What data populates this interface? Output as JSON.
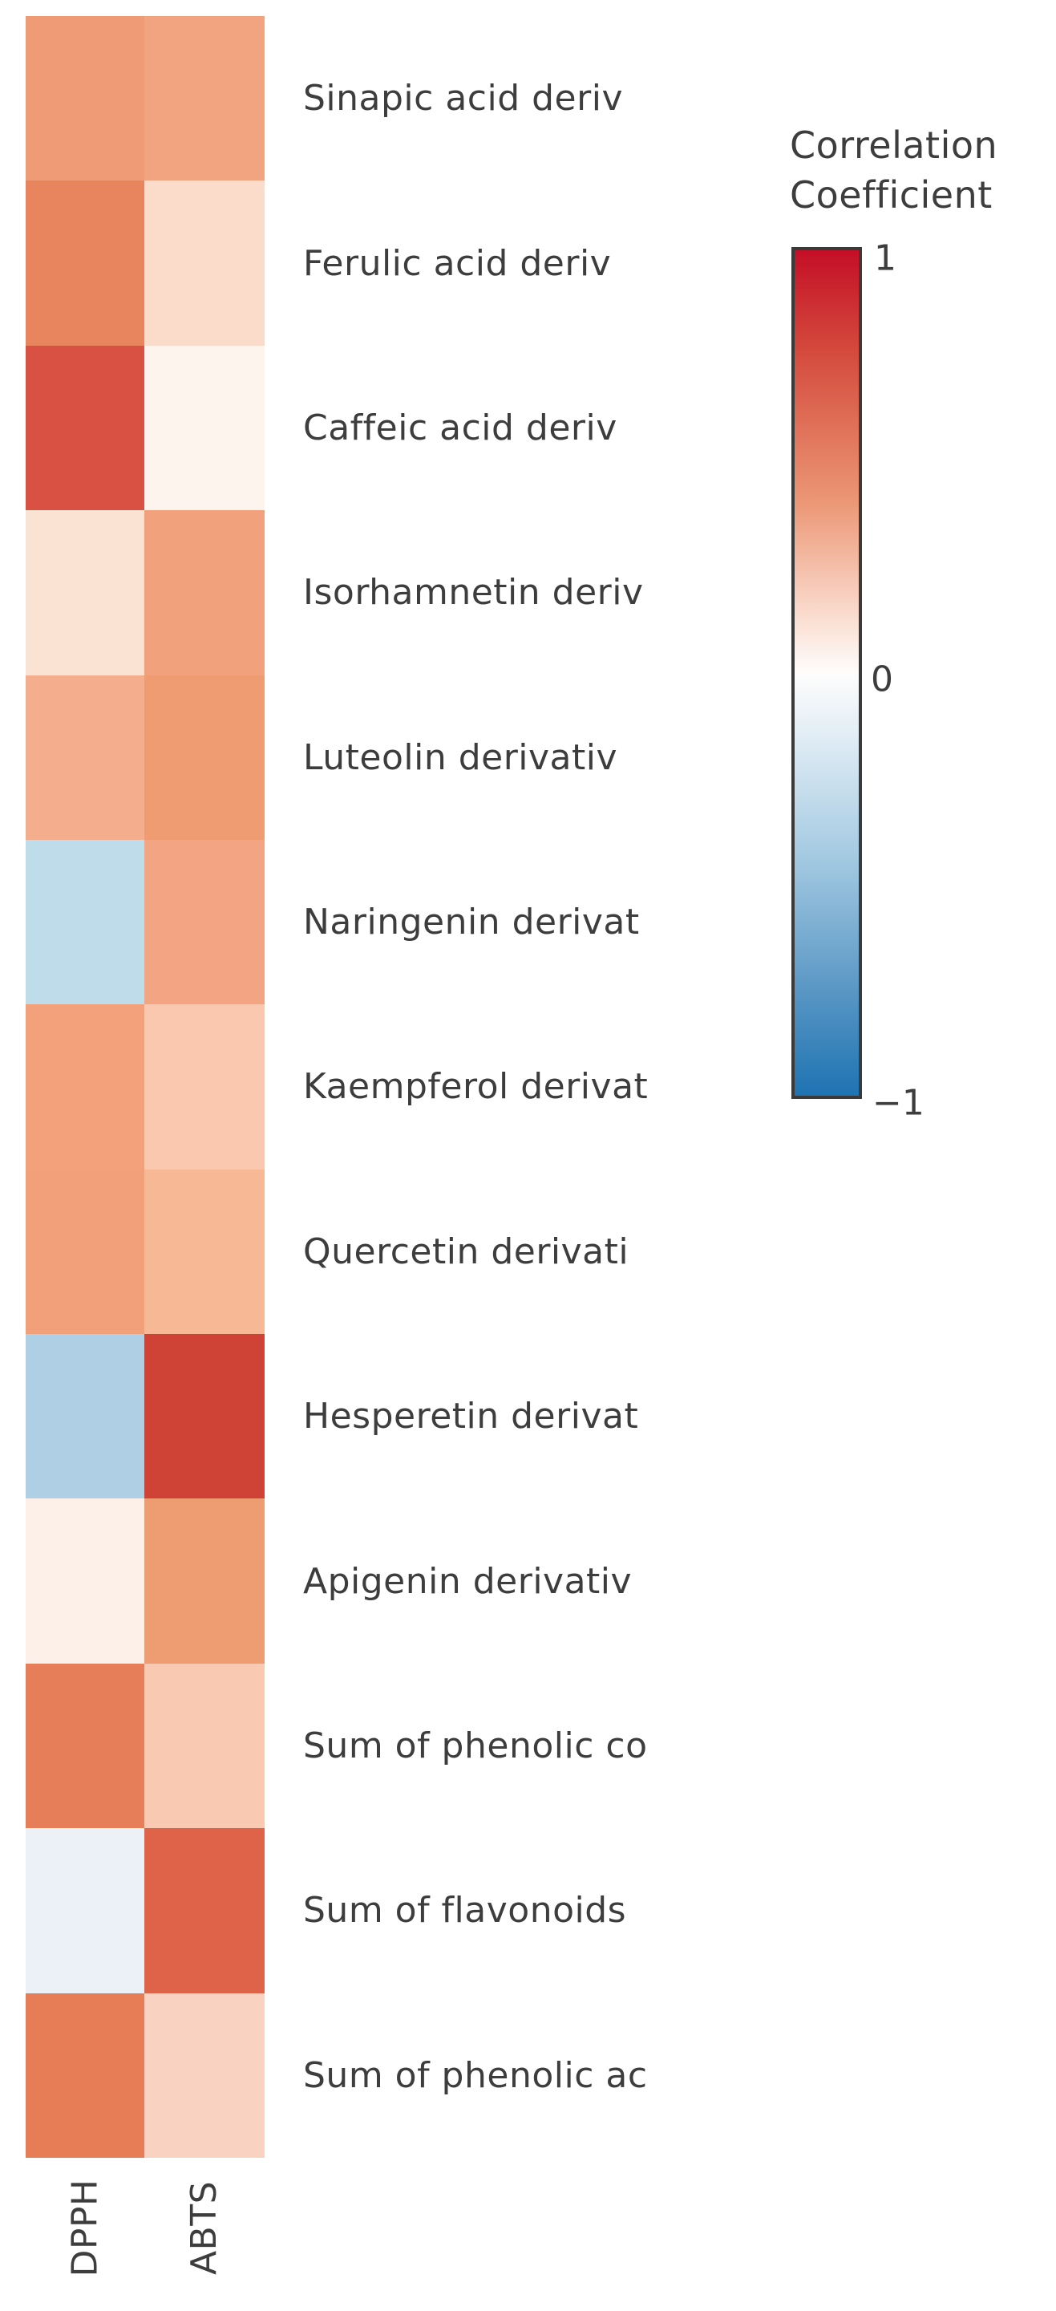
{
  "figure": {
    "background": "#ffffff",
    "text_color": "#3d3d3d"
  },
  "legend": {
    "title_line1": "Correlation",
    "title_line2": "Coefficient",
    "tick_max": "1",
    "tick_zero": "0",
    "tick_min": "−1"
  },
  "chart_data": {
    "type": "heatmap",
    "title": "Correlation Coefficient",
    "x_categories": [
      "DPPH",
      "ABTS"
    ],
    "y_categories": [
      "Sinapic acid deriv",
      "Ferulic acid deriv",
      "Caffeic acid deriv",
      "Isorhamnetin deriv",
      "Luteolin derivativ",
      "Naringenin derivat",
      "Kaempferol derivat",
      "Quercetin derivati",
      "Hesperetin derivat",
      "Apigenin derivativ",
      "Sum of phenolic co",
      "Sum of flavonoids",
      "Sum of phenolic ac"
    ],
    "values": [
      [
        0.45,
        0.42
      ],
      [
        0.58,
        0.13
      ],
      [
        0.76,
        0.03
      ],
      [
        0.1,
        0.43
      ],
      [
        0.37,
        0.45
      ],
      [
        -0.24,
        0.41
      ],
      [
        0.43,
        0.22
      ],
      [
        0.44,
        0.3
      ],
      [
        -0.34,
        0.79
      ],
      [
        0.06,
        0.45
      ],
      [
        0.6,
        0.21
      ],
      [
        -0.07,
        0.67
      ],
      [
        0.61,
        0.18
      ]
    ],
    "value_range": [
      -1,
      1
    ],
    "cell_colors": [
      [
        "#EF9C76",
        "#F2A37F"
      ],
      [
        "#E8855E",
        "#FBDCCA"
      ],
      [
        "#D95143",
        "#FDF4EE"
      ],
      [
        "#FBE3D4",
        "#F1A27C"
      ],
      [
        "#F4AD8D",
        "#EF9C73"
      ],
      [
        "#BFDCEA",
        "#F3A482"
      ],
      [
        "#F2A17B",
        "#FAC8AF"
      ],
      [
        "#F1A07A",
        "#F7B896"
      ],
      [
        "#AFCFE4",
        "#CE4336"
      ],
      [
        "#FCF0E8",
        "#EE9D73"
      ],
      [
        "#E57E59",
        "#FAC9B1"
      ],
      [
        "#EBF1F6",
        "#DE6348"
      ],
      [
        "#E67D57",
        "#FAD2C1"
      ]
    ],
    "colorbar": {
      "orientation": "vertical",
      "range": [
        -1,
        1
      ],
      "ticks": [
        1,
        0,
        -1
      ],
      "border_color": "#3a3a3a",
      "gradient_stops": [
        [
          "#C40F27",
          "0%"
        ],
        [
          "#D44A3C",
          "12%"
        ],
        [
          "#EC9877",
          "30%"
        ],
        [
          "#FBE0D4",
          "44%"
        ],
        [
          "#FEFDFC",
          "50%"
        ],
        [
          "#E3EEF6",
          "57%"
        ],
        [
          "#A3C9E1",
          "72%"
        ],
        [
          "#5795C4",
          "88%"
        ],
        [
          "#1E73B2",
          "100%"
        ]
      ],
      "legend_position": "right"
    },
    "grid": false
  }
}
